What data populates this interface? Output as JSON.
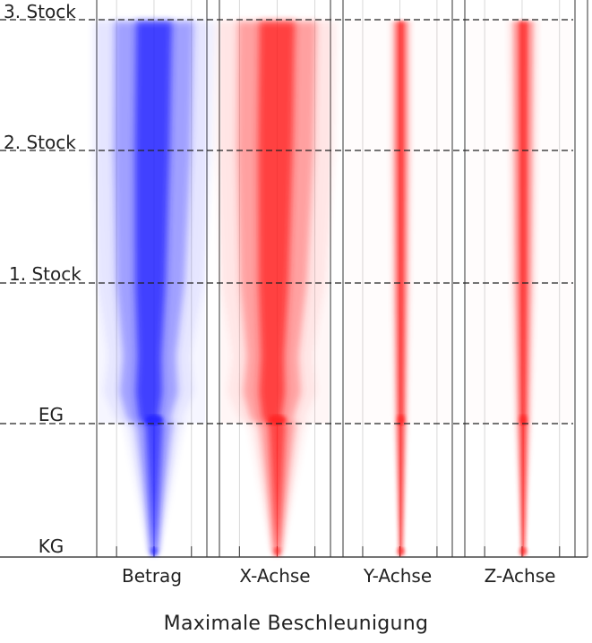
{
  "chart_data": {
    "type": "area",
    "xlabel": "Maximale Beschleunigung",
    "ylabel": "",
    "y_levels": [
      "KG",
      "EG",
      "1. Stock",
      "2. Stock",
      "3. Stock"
    ],
    "level_lines": [
      "EG",
      "1. Stock",
      "2. Stock",
      "3. Stock"
    ],
    "grid": true,
    "series": [
      {
        "name": "Betrag",
        "color": "#2020ff",
        "values": [
          0.05,
          0.35,
          0.62,
          0.7,
          0.72
        ]
      },
      {
        "name": "X-Achse",
        "color": "#ff2020",
        "values": [
          0.05,
          0.34,
          0.6,
          0.69,
          0.71
        ]
      },
      {
        "name": "Y-Achse",
        "color": "#ff2020",
        "values": [
          0.02,
          0.06,
          0.08,
          0.09,
          0.09
        ]
      },
      {
        "name": "Z-Achse",
        "color": "#ff2020",
        "values": [
          0.02,
          0.07,
          0.1,
          0.11,
          0.12
        ]
      }
    ]
  }
}
